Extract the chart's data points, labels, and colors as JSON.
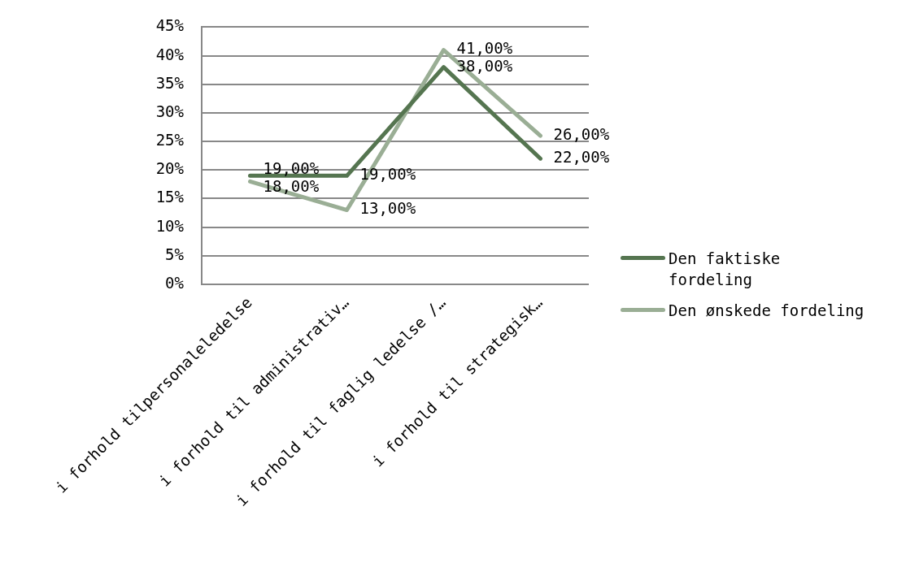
{
  "chart_data": {
    "type": "line",
    "categories": [
      "i forhold tilpersonaleledelse",
      "i forhold til administrativ…",
      "i forhold til faglig ledelse /…",
      "i forhold til strategisk…"
    ],
    "series": [
      {
        "name": "Den faktiske fordeling",
        "color": "#557550",
        "values": [
          19,
          19,
          38,
          22
        ],
        "value_labels": [
          "19,00%",
          "19,00%",
          "38,00%",
          "22,00%"
        ]
      },
      {
        "name": "Den ønskede fordeling",
        "color": "#9aae95",
        "values": [
          18,
          13,
          41,
          26
        ],
        "value_labels": [
          "18,00%",
          "13,00%",
          "41,00%",
          "26,00%"
        ]
      }
    ],
    "ylim": [
      0,
      45
    ],
    "yticks": [
      {
        "value": 0,
        "label": "0%"
      },
      {
        "value": 5,
        "label": "5%"
      },
      {
        "value": 10,
        "label": "10%"
      },
      {
        "value": 15,
        "label": "15%"
      },
      {
        "value": 20,
        "label": "20%"
      },
      {
        "value": 25,
        "label": "25%"
      },
      {
        "value": 30,
        "label": "30%"
      },
      {
        "value": 35,
        "label": "35%"
      },
      {
        "value": 40,
        "label": "40%"
      },
      {
        "value": 45,
        "label": "45%"
      }
    ],
    "grid": "y",
    "legend": "right",
    "marker": "none",
    "line_style": "solid"
  }
}
